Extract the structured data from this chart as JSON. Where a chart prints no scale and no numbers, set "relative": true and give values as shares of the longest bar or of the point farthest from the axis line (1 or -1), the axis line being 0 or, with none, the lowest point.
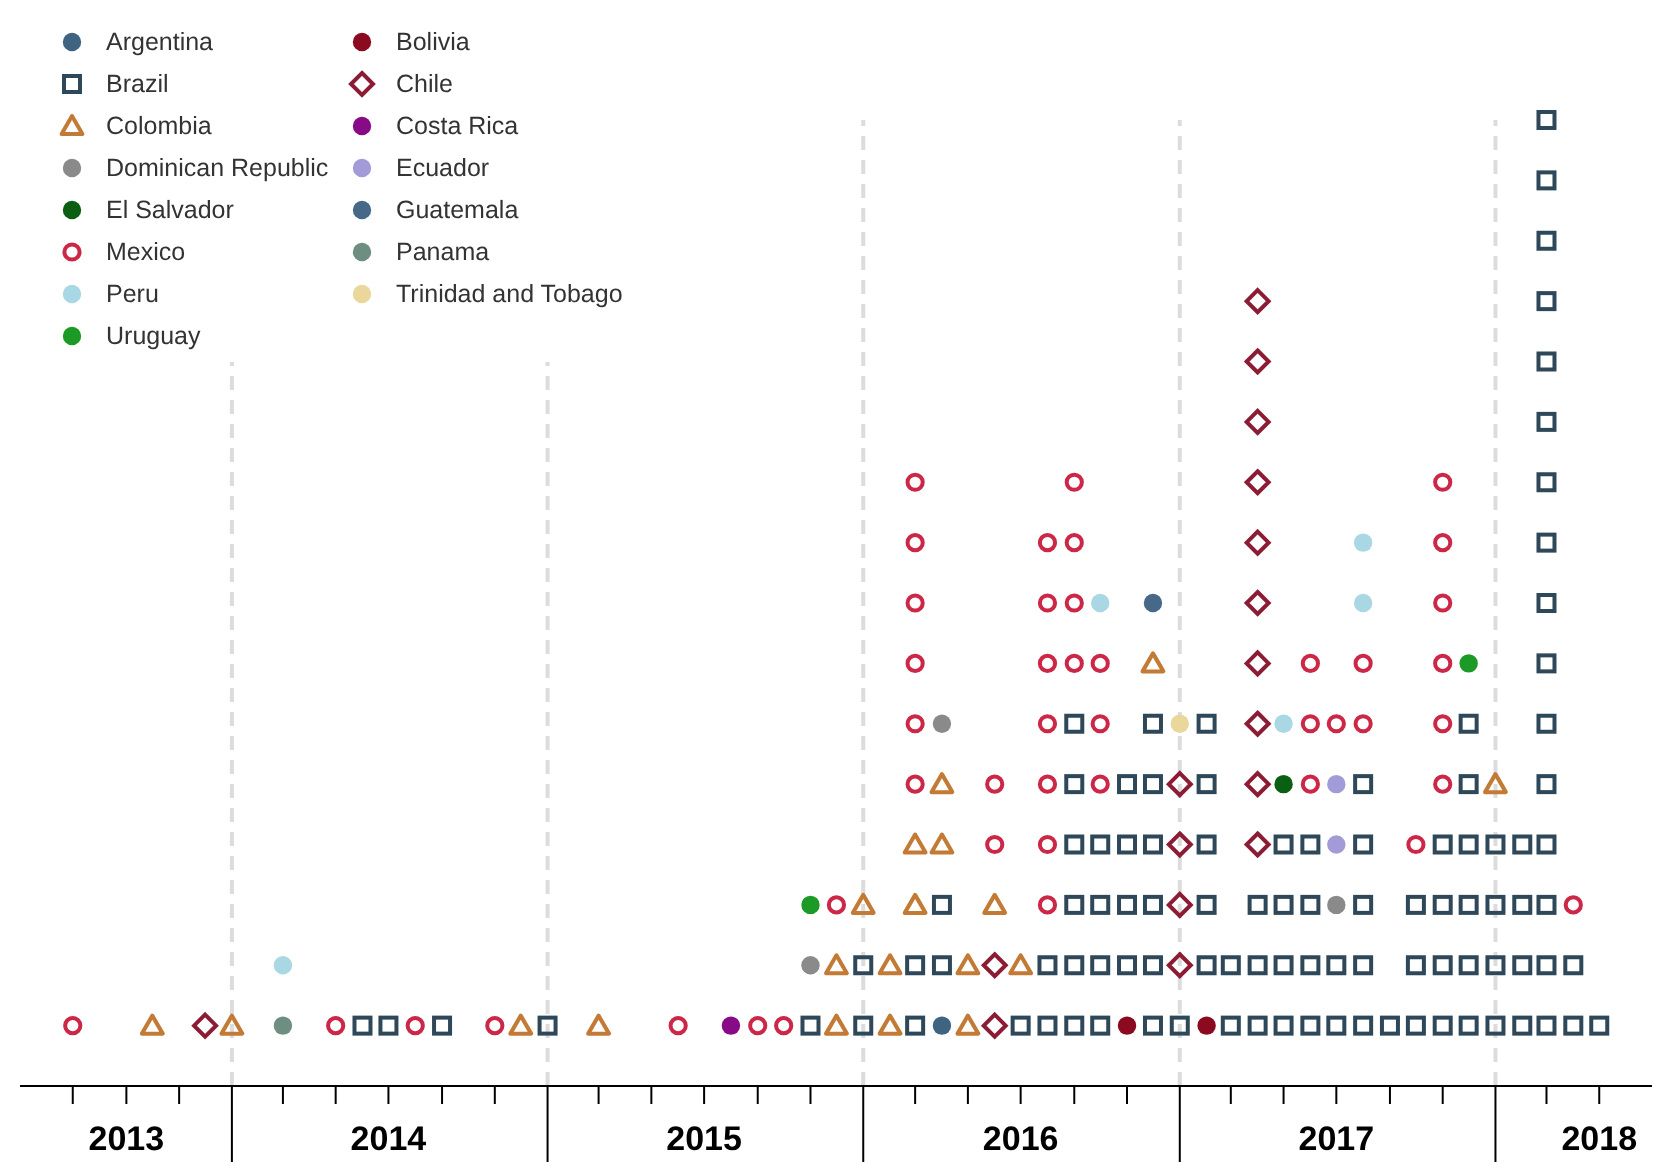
{
  "chart_data": {
    "type": "scatter",
    "relative": true,
    "marker": "circle",
    "legend": "top left",
    "xlim": [
      "2013-05",
      "2018-07"
    ],
    "xticks": [
      {
        "value": "2013-07",
        "label": null
      },
      {
        "value": "2013-09",
        "label": "2013"
      },
      {
        "value": "2013-11",
        "label": null
      },
      {
        "value": "2014-01",
        "label": null
      },
      {
        "value": "2014-03",
        "label": null
      },
      {
        "value": "2014-05",
        "label": null
      },
      {
        "value": "2014-07",
        "label": "2014"
      },
      {
        "value": "2014-09",
        "label": null
      },
      {
        "value": "2014-11",
        "label": null
      },
      {
        "value": "2015-01",
        "label": null
      },
      {
        "value": "2015-03",
        "label": null
      },
      {
        "value": "2015-05",
        "label": null
      },
      {
        "value": "2015-07",
        "label": "2015"
      },
      {
        "value": "2015-09",
        "label": null
      },
      {
        "value": "2015-11",
        "label": null
      },
      {
        "value": "2016-01",
        "label": null
      },
      {
        "value": "2016-03",
        "label": null
      },
      {
        "value": "2016-05",
        "label": null
      },
      {
        "value": "2016-07",
        "label": "2016"
      },
      {
        "value": "2016-09",
        "label": null
      },
      {
        "value": "2016-11",
        "label": null
      },
      {
        "value": "2017-01",
        "label": null
      },
      {
        "value": "2017-03",
        "label": null
      },
      {
        "value": "2017-05",
        "label": null
      },
      {
        "value": "2017-07",
        "label": "2017"
      },
      {
        "value": "2017-09",
        "label": null
      },
      {
        "value": "2017-11",
        "label": null
      },
      {
        "value": "2018-01",
        "label": null
      },
      {
        "value": "2018-03",
        "label": null
      },
      {
        "value": "2018-05",
        "label": "2018"
      }
    ],
    "ref_lines": [
      {
        "axis": "x",
        "value": "2014-01",
        "color": "#dcdcdc",
        "line_style": "dashed"
      },
      {
        "axis": "x",
        "value": "2015-01",
        "color": "#dcdcdc",
        "line_style": "dashed"
      },
      {
        "axis": "x",
        "value": "2016-01",
        "color": "#dcdcdc",
        "line_style": "dashed"
      },
      {
        "axis": "x",
        "value": "2017-01",
        "color": "#dcdcdc",
        "line_style": "dashed"
      },
      {
        "axis": "x",
        "value": "2018-01",
        "color": "#dcdcdc",
        "line_style": "dashed"
      }
    ],
    "series": [
      {
        "name": "Argentina",
        "color": "#3e6482",
        "x": [
          "2016-04"
        ],
        "values": [
          0.0625
        ]
      },
      {
        "name": "Bolivia",
        "color": "#8c0a20",
        "x": [
          "2016-11",
          "2017-02"
        ],
        "values": [
          0.0625,
          0.0625
        ]
      },
      {
        "name": "Brazil",
        "color": "#2e4859",
        "marker": "square",
        "x": [
          "2014-06",
          "2014-07",
          "2014-09",
          "2015-01",
          "2015-11",
          "2016-01",
          "2016-01",
          "2016-03",
          "2016-03",
          "2016-04",
          "2016-04",
          "2016-07",
          "2016-08",
          "2016-08",
          "2016-09",
          "2016-09",
          "2016-09",
          "2016-09",
          "2016-09",
          "2016-09",
          "2016-10",
          "2016-10",
          "2016-10",
          "2016-10",
          "2016-11",
          "2016-11",
          "2016-11",
          "2016-11",
          "2016-12",
          "2016-12",
          "2016-12",
          "2016-12",
          "2016-12",
          "2016-12",
          "2017-01",
          "2017-02",
          "2017-02",
          "2017-02",
          "2017-02",
          "2017-02",
          "2017-03",
          "2017-03",
          "2017-04",
          "2017-04",
          "2017-04",
          "2017-05",
          "2017-05",
          "2017-05",
          "2017-05",
          "2017-06",
          "2017-06",
          "2017-06",
          "2017-06",
          "2017-07",
          "2017-07",
          "2017-08",
          "2017-08",
          "2017-08",
          "2017-08",
          "2017-08",
          "2017-09",
          "2017-10",
          "2017-10",
          "2017-10",
          "2017-11",
          "2017-11",
          "2017-11",
          "2017-11",
          "2017-12",
          "2017-12",
          "2017-12",
          "2017-12",
          "2017-12",
          "2017-12",
          "2018-01",
          "2018-01",
          "2018-01",
          "2018-01",
          "2018-02",
          "2018-02",
          "2018-02",
          "2018-02",
          "2018-03",
          "2018-03",
          "2018-03",
          "2018-03",
          "2018-03",
          "2018-03",
          "2018-03",
          "2018-03",
          "2018-03",
          "2018-03",
          "2018-03",
          "2018-03",
          "2018-03",
          "2018-03",
          "2018-03",
          "2018-03",
          "2018-04",
          "2018-04",
          "2018-05"
        ],
        "values": [
          0.0625,
          0.0625,
          0.0625,
          0.0625,
          0.0625,
          0.0625,
          0.125,
          0.0625,
          0.125,
          0.125,
          0.1875,
          0.0625,
          0.0625,
          0.125,
          0.0625,
          0.125,
          0.1875,
          0.25,
          0.3125,
          0.375,
          0.0625,
          0.125,
          0.1875,
          0.25,
          0.125,
          0.1875,
          0.25,
          0.3125,
          0.0625,
          0.125,
          0.1875,
          0.25,
          0.3125,
          0.375,
          0.0625,
          0.125,
          0.1875,
          0.25,
          0.3125,
          0.375,
          0.0625,
          0.125,
          0.0625,
          0.125,
          0.1875,
          0.0625,
          0.125,
          0.1875,
          0.25,
          0.0625,
          0.125,
          0.1875,
          0.25,
          0.0625,
          0.125,
          0.0625,
          0.125,
          0.1875,
          0.25,
          0.3125,
          0.0625,
          0.0625,
          0.125,
          0.1875,
          0.0625,
          0.125,
          0.1875,
          0.25,
          0.0625,
          0.125,
          0.1875,
          0.25,
          0.3125,
          0.375,
          0.0625,
          0.125,
          0.1875,
          0.25,
          0.0625,
          0.125,
          0.1875,
          0.25,
          0.0625,
          0.125,
          0.1875,
          0.25,
          0.3125,
          0.375,
          0.4375,
          0.5,
          0.5625,
          0.625,
          0.6875,
          0.75,
          0.8125,
          0.875,
          0.9375,
          1,
          0.0625,
          0.125,
          0.0625
        ]
      },
      {
        "name": "Chile",
        "color": "#8c1c34",
        "marker": "diamond",
        "x": [
          "2013-12",
          "2016-06",
          "2016-06",
          "2017-01",
          "2017-01",
          "2017-01",
          "2017-01",
          "2017-04",
          "2017-04",
          "2017-04",
          "2017-04",
          "2017-04",
          "2017-04",
          "2017-04",
          "2017-04",
          "2017-04",
          "2017-04"
        ],
        "values": [
          0.0625,
          0.0625,
          0.125,
          0.125,
          0.1875,
          0.25,
          0.3125,
          0.25,
          0.3125,
          0.375,
          0.4375,
          0.5,
          0.5625,
          0.625,
          0.6875,
          0.75,
          0.8125
        ]
      },
      {
        "name": "Colombia",
        "color": "#c27a35",
        "marker": "triangle",
        "x": [
          "2013-10",
          "2014-01",
          "2014-12",
          "2015-03",
          "2015-12",
          "2015-12",
          "2016-01",
          "2016-02",
          "2016-02",
          "2016-03",
          "2016-03",
          "2016-04",
          "2016-04",
          "2016-05",
          "2016-05",
          "2016-06",
          "2016-07",
          "2016-12",
          "2018-01"
        ],
        "values": [
          0.0625,
          0.0625,
          0.0625,
          0.0625,
          0.0625,
          0.125,
          0.1875,
          0.0625,
          0.125,
          0.1875,
          0.25,
          0.25,
          0.3125,
          0.0625,
          0.125,
          0.1875,
          0.125,
          0.4375,
          0.3125
        ]
      },
      {
        "name": "Costa Rica",
        "color": "#870a87",
        "x": [
          "2015-08"
        ],
        "values": [
          0.0625
        ]
      },
      {
        "name": "Dominican Republic",
        "color": "#8a8a8a",
        "x": [
          "2015-11",
          "2016-04",
          "2017-07"
        ],
        "values": [
          0.125,
          0.375,
          0.1875
        ]
      },
      {
        "name": "Ecuador",
        "color": "#a29bd8",
        "x": [
          "2017-07",
          "2017-07"
        ],
        "values": [
          0.25,
          0.3125
        ]
      },
      {
        "name": "El Salvador",
        "color": "#0b5f12",
        "x": [
          "2017-05"
        ],
        "values": [
          0.3125
        ]
      },
      {
        "name": "Guatemala",
        "color": "#46698a",
        "x": [
          "2016-12"
        ],
        "values": [
          0.5
        ]
      },
      {
        "name": "Mexico",
        "color": "#cc2746",
        "marker": "circle",
        "x": [
          "2013-07",
          "2014-05",
          "2014-08",
          "2014-11",
          "2015-06",
          "2015-09",
          "2015-10",
          "2015-12",
          "2016-03",
          "2016-03",
          "2016-03",
          "2016-03",
          "2016-03",
          "2016-03",
          "2016-06",
          "2016-06",
          "2016-08",
          "2016-08",
          "2016-08",
          "2016-08",
          "2016-08",
          "2016-08",
          "2016-08",
          "2016-09",
          "2016-09",
          "2016-09",
          "2016-09",
          "2016-10",
          "2016-10",
          "2016-10",
          "2017-06",
          "2017-06",
          "2017-06",
          "2017-07",
          "2017-08",
          "2017-08",
          "2017-10",
          "2017-11",
          "2017-11",
          "2017-11",
          "2017-11",
          "2017-11",
          "2017-11",
          "2018-04"
        ],
        "values": [
          0.0625,
          0.0625,
          0.0625,
          0.0625,
          0.0625,
          0.0625,
          0.0625,
          0.1875,
          0.3125,
          0.375,
          0.4375,
          0.5,
          0.5625,
          0.625,
          0.25,
          0.3125,
          0.1875,
          0.25,
          0.3125,
          0.375,
          0.4375,
          0.5,
          0.5625,
          0.4375,
          0.5,
          0.5625,
          0.625,
          0.3125,
          0.375,
          0.4375,
          0.3125,
          0.375,
          0.4375,
          0.375,
          0.375,
          0.4375,
          0.25,
          0.3125,
          0.375,
          0.4375,
          0.5,
          0.5625,
          0.625,
          0.1875
        ]
      },
      {
        "name": "Panama",
        "color": "#6e8e82",
        "x": [
          "2014-03"
        ],
        "values": [
          0.0625
        ]
      },
      {
        "name": "Peru",
        "color": "#a9d7e4",
        "x": [
          "2014-03",
          "2016-10",
          "2017-05",
          "2017-08",
          "2017-08"
        ],
        "values": [
          0.125,
          0.5,
          0.375,
          0.5,
          0.5625
        ]
      },
      {
        "name": "Trinidad and Tobago",
        "color": "#e9d79b",
        "x": [
          "2017-01"
        ],
        "values": [
          0.375
        ]
      },
      {
        "name": "Uruguay",
        "color": "#1c9a26",
        "x": [
          "2015-11",
          "2017-12"
        ],
        "values": [
          0.1875,
          0.4375
        ]
      }
    ]
  }
}
